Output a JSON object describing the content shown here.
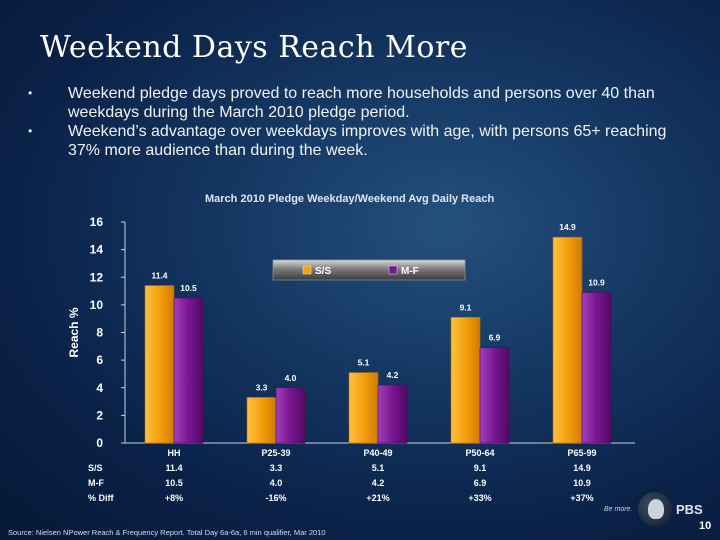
{
  "slide": {
    "title": "Weekend Days Reach More",
    "bullets": [
      "Weekend pledge days proved to reach more households and persons over 40 than weekdays during the March 2010 pledge period.",
      "Weekend’s advantage over weekdays improves with age, with persons 65+ reaching 37% more audience than during the week."
    ],
    "bullet_glyph": "•",
    "footer": "Source: Nielsen NPower Reach & Frequency Report. Total Day 6a-6a, 6 min qualifier, Mar 2010",
    "brand_tagline": "Be more.",
    "brand_name": "PBS",
    "page_number": "10"
  },
  "chart_data": {
    "type": "bar",
    "title": "March 2010 Pledge Weekday/Weekend Avg Daily Reach",
    "ylabel": "Reach %",
    "xlabel": "",
    "ylim": [
      0,
      16
    ],
    "yticks": [
      0,
      2,
      4,
      6,
      8,
      10,
      12,
      14,
      16
    ],
    "categories": [
      "HH",
      "P25-39",
      "P40-49",
      "P50-64",
      "P65-99"
    ],
    "series": [
      {
        "name": "S/S",
        "values": [
          11.4,
          3.3,
          5.1,
          9.1,
          14.9
        ],
        "labels": [
          "11.4",
          "3.3",
          "5.1",
          "9.1",
          "14.9"
        ],
        "color": "#f5a00c"
      },
      {
        "name": "M-F",
        "values": [
          10.5,
          4.0,
          4.2,
          6.9,
          10.9
        ],
        "labels": [
          "10.5",
          "4.0",
          "4.2",
          "6.9",
          "10.9"
        ],
        "color": "#7a1590"
      }
    ],
    "legend_position": "top-center",
    "grid": false,
    "table": {
      "rows": [
        {
          "label": "S/S",
          "values": [
            "11.4",
            "3.3",
            "5.1",
            "9.1",
            "14.9"
          ]
        },
        {
          "label": "M-F",
          "values": [
            "10.5",
            "4.0",
            "4.2",
            "6.9",
            "10.9"
          ]
        },
        {
          "label": "% Diff",
          "values": [
            "+8%",
            "-16%",
            "+21%",
            "+33%",
            "+37%"
          ]
        }
      ]
    }
  }
}
